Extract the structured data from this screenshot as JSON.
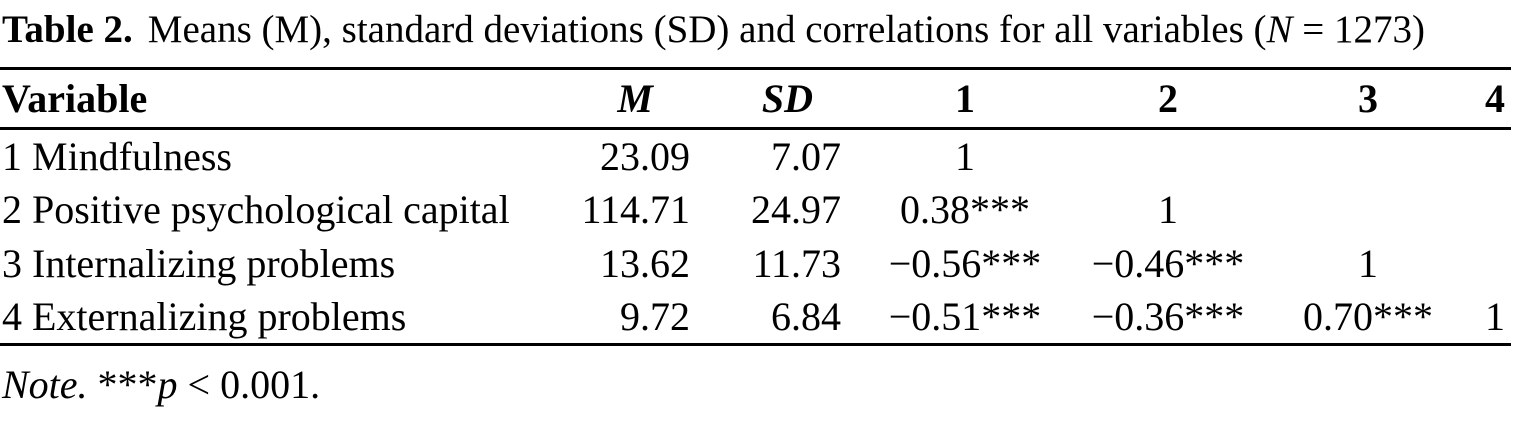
{
  "colors": {
    "text": "#000000",
    "background": "#ffffff",
    "rule": "#000000"
  },
  "caption": {
    "label": "Table 2.",
    "body_before_n": "Means (M), standard deviations (SD) and correlations for all variables (",
    "n_symbol": "N",
    "body_after_n": " = 1273)"
  },
  "table": {
    "headers": {
      "variable": "Variable",
      "m": "M",
      "sd": "SD",
      "c1": "1",
      "c2": "2",
      "c3": "3",
      "c4": "4"
    },
    "rows": [
      {
        "variable": "1 Mindfulness",
        "m": "23.09",
        "sd": "7.07",
        "c1": "1",
        "c2": "",
        "c3": "",
        "c4": ""
      },
      {
        "variable": "2 Positive psychological capital",
        "m": "114.71",
        "sd": "24.97",
        "c1": "0.38***",
        "c2": "1",
        "c3": "",
        "c4": ""
      },
      {
        "variable": "3 Internalizing problems",
        "m": "13.62",
        "sd": "11.73",
        "c1": "−0.56***",
        "c2": "−0.46***",
        "c3": "1",
        "c4": ""
      },
      {
        "variable": "4 Externalizing problems",
        "m": "9.72",
        "sd": "6.84",
        "c1": "−0.51***",
        "c2": "−0.36***",
        "c3": "0.70***",
        "c4": "1"
      }
    ]
  },
  "note": {
    "label": "Note.",
    "stars": " ***",
    "p_symbol": "p",
    "text": " < 0.001."
  }
}
